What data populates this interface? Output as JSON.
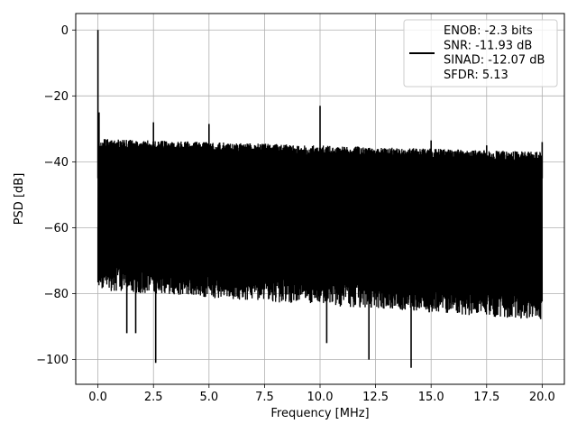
{
  "chart_data": {
    "type": "line",
    "title": "",
    "xlabel": "Frequency [MHz]",
    "ylabel": "PSD [dB]",
    "xlim": [
      -1.0,
      21.0
    ],
    "ylim": [
      -107.5,
      5.0
    ],
    "xticks": [
      0.0,
      2.5,
      5.0,
      7.5,
      10.0,
      12.5,
      15.0,
      17.5,
      20.0
    ],
    "xtick_labels": [
      "0.0",
      "2.5",
      "5.0",
      "7.5",
      "10.0",
      "12.5",
      "15.0",
      "17.5",
      "20.0"
    ],
    "yticks": [
      0,
      -20,
      -40,
      -60,
      -80,
      -100
    ],
    "ytick_labels": [
      "0",
      "−20",
      "−40",
      "−60",
      "−80",
      "−100"
    ],
    "grid": true,
    "legend_position": "top-right",
    "series": [
      {
        "name": "ENOB: -2.3 bits\nSNR: -11.93 dB\nSINAD: -12.07 dB\nSFDR: 5.13",
        "color": "#000000",
        "noise_floor_band": {
          "x_range": [
            0.0,
            20.0
          ],
          "upper_envelope_db": [
            -33,
            -37
          ],
          "lower_envelope_db": [
            -75,
            -84
          ]
        },
        "spikes": [
          {
            "x": 0.0,
            "y": 0
          },
          {
            "x": 0.05,
            "y": -25
          },
          {
            "x": 2.5,
            "y": -28
          },
          {
            "x": 5.0,
            "y": -28.5
          },
          {
            "x": 10.0,
            "y": -23
          },
          {
            "x": 15.0,
            "y": -33.5
          },
          {
            "x": 17.5,
            "y": -35
          },
          {
            "x": 20.0,
            "y": -34
          }
        ],
        "dips": [
          {
            "x": 2.6,
            "y": -101
          },
          {
            "x": 14.1,
            "y": -102.5
          },
          {
            "x": 12.2,
            "y": -100
          },
          {
            "x": 10.3,
            "y": -95
          },
          {
            "x": 1.3,
            "y": -92
          },
          {
            "x": 1.7,
            "y": -92
          }
        ]
      }
    ],
    "legend_lines": [
      "ENOB: -2.3 bits",
      "SNR: -11.93 dB",
      "SINAD: -12.07 dB",
      "SFDR: 5.13"
    ]
  }
}
